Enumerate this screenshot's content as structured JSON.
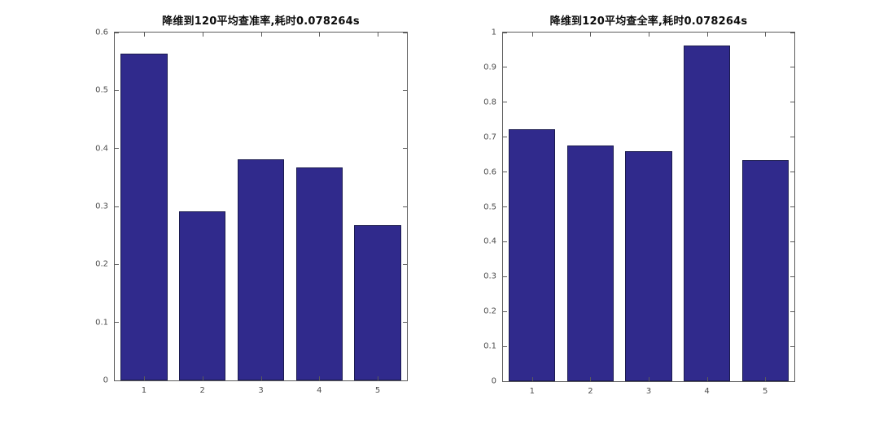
{
  "page": {
    "background": "#ffffff",
    "figure_type": "matlab-style dual bar figure"
  },
  "chart_data": [
    {
      "type": "bar",
      "title": "降维到120平均查准率,耗时0.078264s",
      "categories": [
        "1",
        "2",
        "3",
        "4",
        "5"
      ],
      "values": [
        0.563,
        0.291,
        0.381,
        0.368,
        0.268
      ],
      "xlabel": "",
      "ylabel": "",
      "ylim": [
        0,
        0.6
      ],
      "yticks": [
        0,
        0.1,
        0.2,
        0.3,
        0.4,
        0.5,
        0.6
      ],
      "ytick_labels": [
        "0",
        "0.1",
        "0.2",
        "0.3",
        "0.4",
        "0.5",
        "0.6"
      ],
      "grid": false,
      "legend": null,
      "axis_box": true,
      "bar_color": "#302a8c",
      "bar_edge_color": "#1b1b4f",
      "bar_width_fraction": 0.8
    },
    {
      "type": "bar",
      "title": "降维到120平均查全率,耗时0.078264s",
      "categories": [
        "1",
        "2",
        "3",
        "4",
        "5"
      ],
      "values": [
        0.722,
        0.677,
        0.66,
        0.963,
        0.634
      ],
      "xlabel": "",
      "ylabel": "",
      "ylim": [
        0,
        1
      ],
      "yticks": [
        0,
        0.1,
        0.2,
        0.3,
        0.4,
        0.5,
        0.6,
        0.7,
        0.8,
        0.9,
        1
      ],
      "ytick_labels": [
        "0",
        "0.1",
        "0.2",
        "0.3",
        "0.4",
        "0.5",
        "0.6",
        "0.7",
        "0.8",
        "0.9",
        "1"
      ],
      "grid": false,
      "legend": null,
      "axis_box": true,
      "bar_color": "#302a8c",
      "bar_edge_color": "#1b1b4f",
      "bar_width_fraction": 0.8
    }
  ]
}
